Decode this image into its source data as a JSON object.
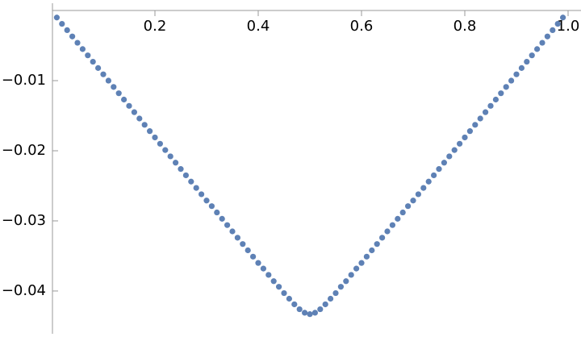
{
  "chart_data": {
    "type": "scatter",
    "x": [
      0.01,
      0.02,
      0.03,
      0.04,
      0.05,
      0.06,
      0.07,
      0.08,
      0.09,
      0.1,
      0.11,
      0.12,
      0.13,
      0.14,
      0.15,
      0.16,
      0.17,
      0.18,
      0.19,
      0.2,
      0.21,
      0.22,
      0.23,
      0.24,
      0.25,
      0.26,
      0.27,
      0.28,
      0.29,
      0.3,
      0.31,
      0.32,
      0.33,
      0.34,
      0.35,
      0.36,
      0.37,
      0.38,
      0.39,
      0.4,
      0.41,
      0.42,
      0.43,
      0.44,
      0.45,
      0.46,
      0.47,
      0.48,
      0.49,
      0.5,
      0.51,
      0.52,
      0.53,
      0.54,
      0.55,
      0.56,
      0.57,
      0.58,
      0.59,
      0.6,
      0.61,
      0.62,
      0.63,
      0.64,
      0.65,
      0.66,
      0.67,
      0.68,
      0.69,
      0.7,
      0.71,
      0.72,
      0.73,
      0.74,
      0.75,
      0.76,
      0.77,
      0.78,
      0.79,
      0.8,
      0.81,
      0.82,
      0.83,
      0.84,
      0.85,
      0.86,
      0.87,
      0.88,
      0.89,
      0.9,
      0.91,
      0.92,
      0.93,
      0.94,
      0.95,
      0.96,
      0.97,
      0.98,
      0.99
    ],
    "values": [
      -0.001,
      -0.0019,
      -0.0028,
      -0.0037,
      -0.0046,
      -0.0055,
      -0.0064,
      -0.0073,
      -0.0082,
      -0.0091,
      -0.01,
      -0.0109,
      -0.0118,
      -0.0127,
      -0.0136,
      -0.0145,
      -0.0154,
      -0.0163,
      -0.0172,
      -0.0181,
      -0.019,
      -0.0199,
      -0.0208,
      -0.0217,
      -0.0226,
      -0.0235,
      -0.0244,
      -0.0253,
      -0.0262,
      -0.0271,
      -0.0279,
      -0.0288,
      -0.0297,
      -0.0306,
      -0.0315,
      -0.0324,
      -0.0333,
      -0.0342,
      -0.0351,
      -0.036,
      -0.0368,
      -0.0377,
      -0.0386,
      -0.0394,
      -0.0403,
      -0.0411,
      -0.0419,
      -0.0426,
      -0.0431,
      -0.0433,
      -0.0431,
      -0.0426,
      -0.0419,
      -0.0411,
      -0.0403,
      -0.0394,
      -0.0386,
      -0.0377,
      -0.0368,
      -0.036,
      -0.0351,
      -0.0342,
      -0.0333,
      -0.0324,
      -0.0315,
      -0.0306,
      -0.0297,
      -0.0288,
      -0.0279,
      -0.0271,
      -0.0262,
      -0.0253,
      -0.0244,
      -0.0235,
      -0.0226,
      -0.0217,
      -0.0208,
      -0.0199,
      -0.019,
      -0.0181,
      -0.0172,
      -0.0163,
      -0.0154,
      -0.0145,
      -0.0136,
      -0.0127,
      -0.0118,
      -0.0109,
      -0.01,
      -0.0091,
      -0.0082,
      -0.0073,
      -0.0064,
      -0.0055,
      -0.0046,
      -0.0037,
      -0.0028,
      -0.0019,
      -0.001
    ],
    "color": "#5e81b5",
    "xlim": [
      0,
      1.025
    ],
    "ylim": [
      -0.0461,
      0.0015
    ],
    "xticks": [
      0.2,
      0.4,
      0.6,
      0.8,
      {
        "value": 1,
        "label": "1.0"
      }
    ],
    "yticks": [
      {
        "value": -0.01,
        "label": "−0.01"
      },
      {
        "value": -0.02,
        "label": "−0.02"
      },
      {
        "value": -0.03,
        "label": "−0.03"
      },
      {
        "value": -0.04,
        "label": "−0.04"
      }
    ]
  }
}
